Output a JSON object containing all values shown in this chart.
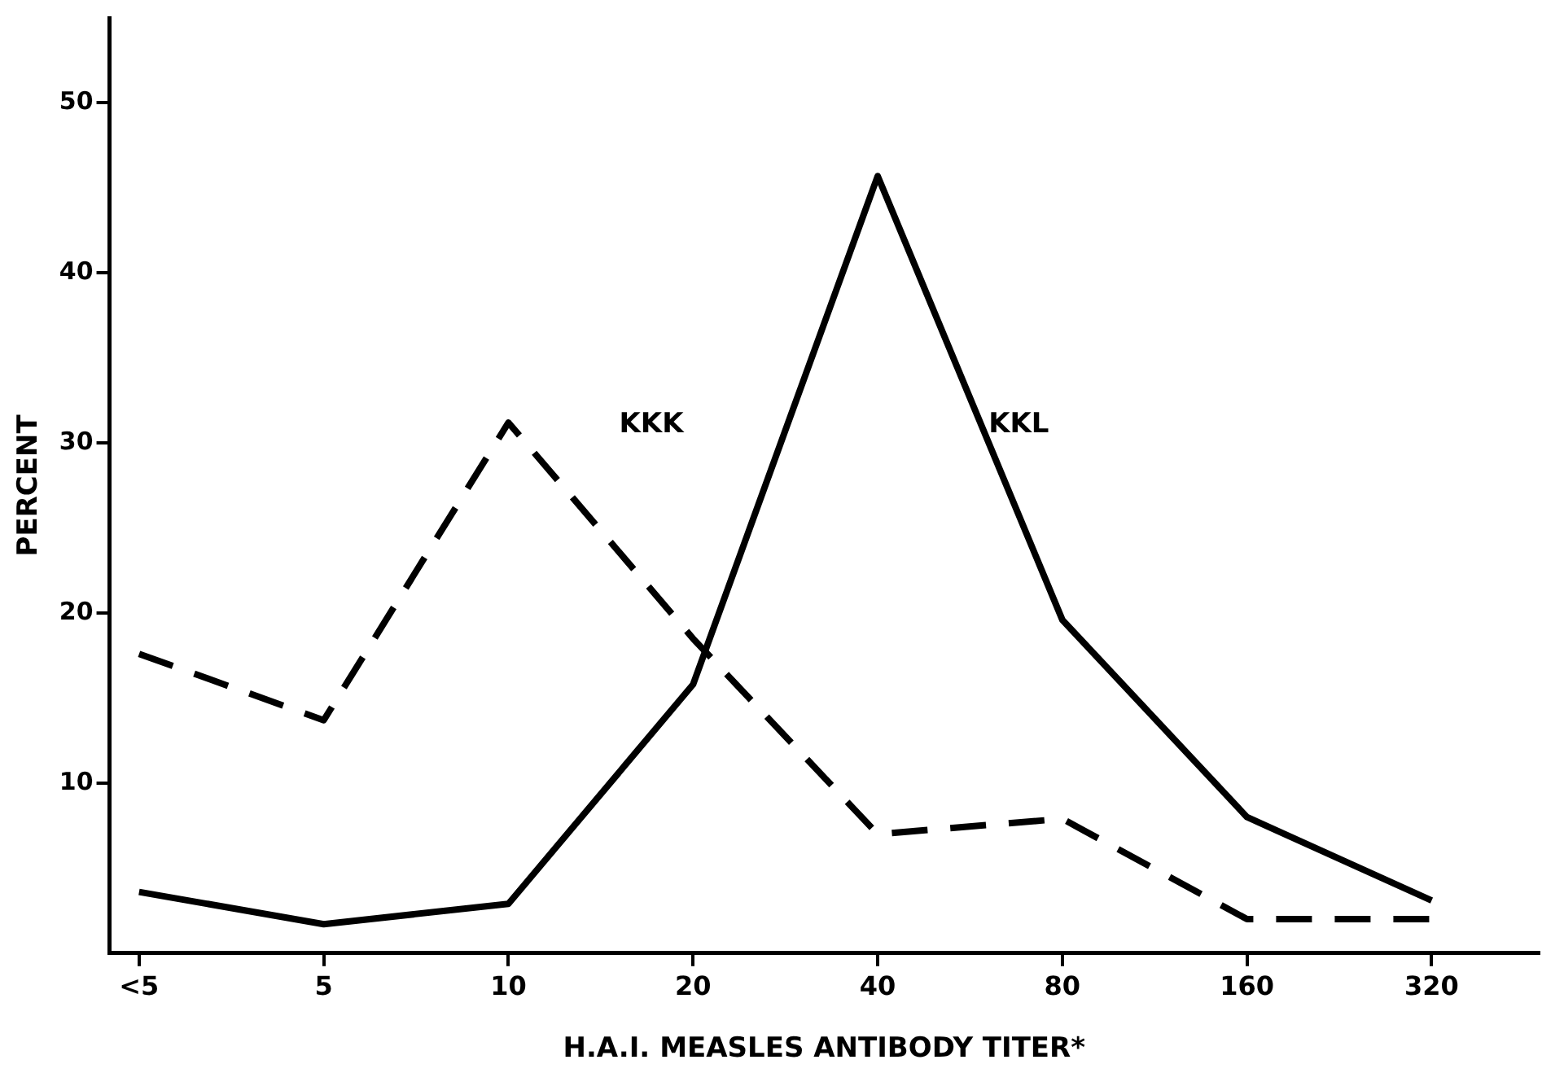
{
  "chart_data": {
    "type": "line",
    "xlabel": "H.A.I. MEASLES ANTIBODY TITER*",
    "ylabel": "PERCENT",
    "categories": [
      "<5",
      "5",
      "10",
      "20",
      "40",
      "80",
      "160",
      "320"
    ],
    "series": [
      {
        "name": "KKK",
        "color": "#000000",
        "line_style": "dashed",
        "values": [
          17.6,
          13.7,
          31.2,
          18.5,
          7.0,
          7.9,
          2.0,
          2.0
        ]
      },
      {
        "name": "KKL",
        "color": "#000000",
        "line_style": "solid",
        "values": [
          3.6,
          1.7,
          2.9,
          15.8,
          45.7,
          19.6,
          8.0,
          3.1
        ]
      }
    ],
    "ylim": [
      0,
      55
    ],
    "yticks": [
      10,
      20,
      30,
      40,
      50
    ],
    "grid": false,
    "legend": false,
    "marker": "none"
  }
}
